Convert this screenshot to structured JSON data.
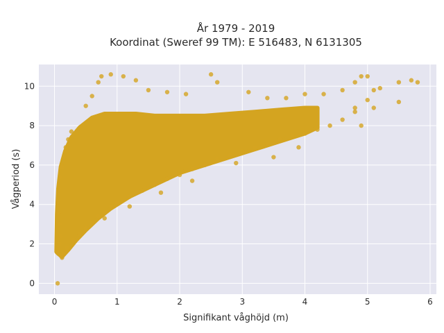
{
  "chart_data": {
    "type": "scatter",
    "title_line1": "År 1979 - 2019",
    "title_line2": "Koordinat (Sweref 99 TM): E 516483, N 6131305",
    "xlabel": "Signifikant våghöjd (m)",
    "ylabel": "Vågperiod (s)",
    "xlim": [
      -0.25,
      6.1
    ],
    "ylim": [
      -0.55,
      11.1
    ],
    "x_ticks": [
      0,
      1,
      2,
      3,
      4,
      5,
      6
    ],
    "x_tick_labels": [
      "0",
      "1",
      "2",
      "3",
      "4",
      "5",
      "6"
    ],
    "y_ticks": [
      0,
      2,
      4,
      6,
      8,
      10
    ],
    "y_tick_labels": [
      "0",
      "2",
      "4",
      "6",
      "8",
      "10"
    ],
    "grid": true,
    "point_color": "#D4A420",
    "background_color": "#E5E5F0",
    "grid_color": "#FFFFFF",
    "points": [
      [
        0.05,
        0.0
      ],
      [
        0.04,
        1.6
      ],
      [
        0.06,
        1.8
      ],
      [
        0.08,
        2.0
      ],
      [
        0.1,
        1.4
      ],
      [
        0.12,
        1.3
      ],
      [
        0.15,
        1.5
      ],
      [
        0.1,
        2.4
      ],
      [
        0.08,
        3.0
      ],
      [
        0.07,
        3.6
      ],
      [
        0.06,
        4.2
      ],
      [
        0.07,
        4.8
      ],
      [
        0.09,
        5.4
      ],
      [
        0.12,
        5.9
      ],
      [
        0.15,
        6.4
      ],
      [
        0.18,
        6.9
      ],
      [
        0.22,
        7.3
      ],
      [
        0.27,
        7.7
      ],
      [
        0.2,
        1.8
      ],
      [
        0.3,
        2.2
      ],
      [
        0.4,
        2.5
      ],
      [
        0.5,
        2.8
      ],
      [
        0.6,
        3.1
      ],
      [
        0.7,
        3.4
      ],
      [
        0.8,
        3.6
      ],
      [
        0.9,
        3.9
      ],
      [
        1.0,
        4.1
      ],
      [
        1.2,
        4.4
      ],
      [
        1.4,
        4.7
      ],
      [
        1.6,
        5.0
      ],
      [
        1.8,
        5.3
      ],
      [
        2.0,
        5.5
      ],
      [
        2.2,
        5.8
      ],
      [
        2.4,
        6.0
      ],
      [
        2.6,
        6.3
      ],
      [
        2.8,
        6.5
      ],
      [
        3.0,
        6.7
      ],
      [
        3.2,
        6.9
      ],
      [
        3.4,
        7.1
      ],
      [
        3.6,
        7.3
      ],
      [
        3.8,
        7.5
      ],
      [
        4.0,
        7.6
      ],
      [
        4.2,
        7.8
      ],
      [
        4.4,
        8.0
      ],
      [
        4.6,
        8.3
      ],
      [
        4.8,
        8.7
      ],
      [
        5.0,
        9.3
      ],
      [
        5.1,
        9.8
      ],
      [
        0.5,
        9.0
      ],
      [
        0.6,
        9.5
      ],
      [
        0.7,
        10.2
      ],
      [
        0.75,
        10.5
      ],
      [
        0.9,
        10.6
      ],
      [
        1.1,
        10.5
      ],
      [
        1.3,
        10.3
      ],
      [
        1.5,
        9.8
      ],
      [
        1.8,
        9.7
      ],
      [
        2.1,
        9.6
      ],
      [
        2.5,
        10.6
      ],
      [
        2.6,
        10.2
      ],
      [
        3.1,
        9.7
      ],
      [
        3.4,
        9.4
      ],
      [
        3.7,
        9.4
      ],
      [
        4.0,
        9.6
      ],
      [
        4.3,
        9.6
      ],
      [
        4.6,
        9.8
      ],
      [
        4.8,
        10.2
      ],
      [
        4.9,
        10.5
      ],
      [
        5.0,
        10.5
      ],
      [
        5.2,
        9.9
      ],
      [
        5.5,
        10.2
      ],
      [
        5.5,
        9.2
      ],
      [
        5.7,
        10.3
      ],
      [
        5.8,
        10.2
      ],
      [
        4.9,
        8.0
      ],
      [
        4.8,
        8.9
      ],
      [
        5.1,
        8.9
      ],
      [
        3.9,
        6.9
      ],
      [
        3.5,
        6.4
      ],
      [
        2.9,
        6.1
      ],
      [
        2.2,
        5.2
      ],
      [
        1.7,
        4.6
      ],
      [
        1.2,
        3.9
      ],
      [
        0.8,
        3.3
      ]
    ]
  }
}
